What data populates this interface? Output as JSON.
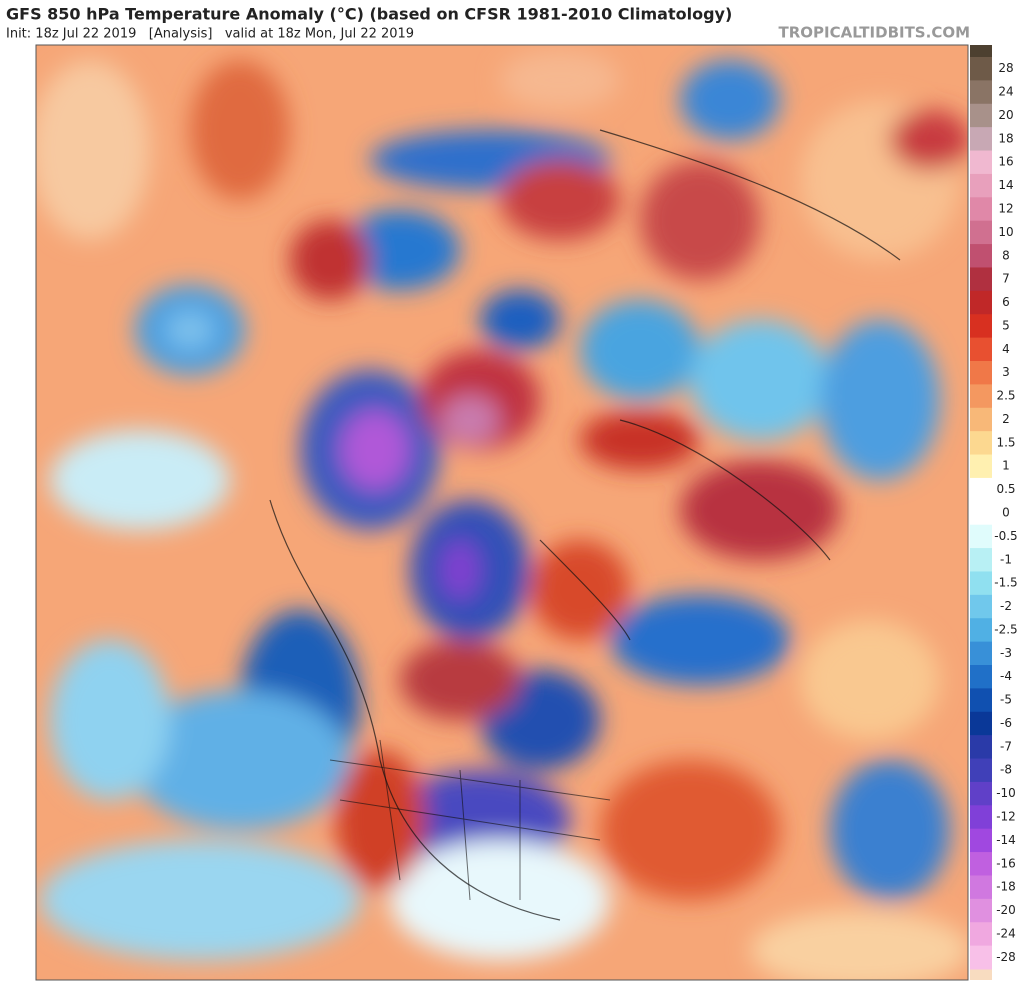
{
  "header": {
    "title": "GFS 850 hPa Temperature Anomaly (°C) (based on CFSR 1981-2010 Climatology)",
    "subtitle": "Init: 18z Jul 22 2019   [Analysis]   valid at 18z Mon, Jul 22 2019",
    "brand": "TROPICALTIDBITS.COM"
  },
  "colorbar": {
    "labels": [
      28,
      24,
      20,
      18,
      16,
      14,
      12,
      10,
      8,
      7,
      6,
      5,
      4,
      3,
      2.5,
      2,
      1.5,
      1,
      0.5,
      0,
      -0.5,
      -1,
      -1.5,
      -2,
      -2.5,
      -3,
      -4,
      -5,
      -6,
      -7,
      -8,
      -10,
      -12,
      -14,
      -16,
      -18,
      -20,
      -24,
      -28
    ],
    "colors": [
      "#6e5a48",
      "#8a7465",
      "#a8918a",
      "#c8a8b4",
      "#f0b8d0",
      "#e8a0bc",
      "#e088a8",
      "#d07090",
      "#c05070",
      "#b03040",
      "#c02828",
      "#d83020",
      "#e85030",
      "#f07848",
      "#f49860",
      "#f8b878",
      "#fcd890",
      "#fff0b0",
      "#ffffff",
      "#ffffff",
      "#e0fcfc",
      "#b8f0f4",
      "#90e0f0",
      "#70c8ec",
      "#50b0e4",
      "#3890d8",
      "#2070c8",
      "#1050b0",
      "#0a3898",
      "#2a3aa8",
      "#4040b8",
      "#6040c8",
      "#8040d8",
      "#a048e0",
      "#c060e0",
      "#d078e0",
      "#e090e0",
      "#f0a8e0",
      "#f8c0e8"
    ]
  }
}
